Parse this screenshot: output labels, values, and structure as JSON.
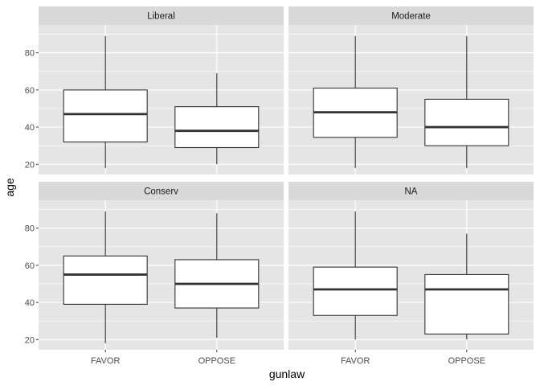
{
  "chart_data": {
    "type": "boxplot",
    "xlabel": "gunlaw",
    "ylabel": "age",
    "categories": [
      "FAVOR",
      "OPPOSE"
    ],
    "ylim": [
      14.5,
      95
    ],
    "yticks": [
      20,
      40,
      60,
      80
    ],
    "grid": true,
    "facets": [
      {
        "name": "Liberal",
        "boxes": [
          {
            "category": "FAVOR",
            "min": 18,
            "q1": 32,
            "median": 47,
            "q3": 60,
            "max": 89
          },
          {
            "category": "OPPOSE",
            "min": 20,
            "q1": 29,
            "median": 38,
            "q3": 51,
            "max": 69
          }
        ]
      },
      {
        "name": "Moderate",
        "boxes": [
          {
            "category": "FAVOR",
            "min": 18,
            "q1": 34.5,
            "median": 48,
            "q3": 61,
            "max": 89
          },
          {
            "category": "OPPOSE",
            "min": 18,
            "q1": 30,
            "median": 40,
            "q3": 55,
            "max": 89
          }
        ]
      },
      {
        "name": "Conserv",
        "boxes": [
          {
            "category": "FAVOR",
            "min": 18,
            "q1": 39,
            "median": 55,
            "q3": 65,
            "max": 89
          },
          {
            "category": "OPPOSE",
            "min": 21,
            "q1": 37,
            "median": 50,
            "q3": 63,
            "max": 88
          }
        ]
      },
      {
        "name": "NA",
        "boxes": [
          {
            "category": "FAVOR",
            "min": 20,
            "q1": 33,
            "median": 47,
            "q3": 59,
            "max": 89
          },
          {
            "category": "OPPOSE",
            "min": 20,
            "q1": 23,
            "median": 47,
            "q3": 55,
            "max": 77
          }
        ]
      }
    ]
  },
  "colors": {
    "panel_background": "#e5e5e5",
    "strip_background": "#d9d9d9",
    "grid_major": "#ffffff",
    "box_fill": "#ffffff",
    "box_line": "#333333",
    "median_line": "#333333"
  }
}
